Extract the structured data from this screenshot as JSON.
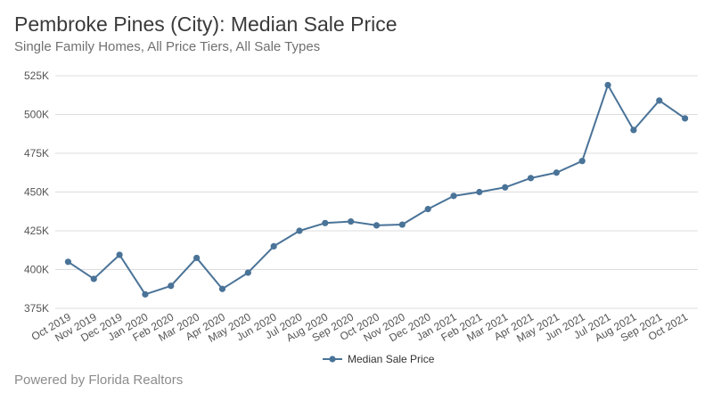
{
  "header": {
    "title": "Pembroke Pines (City): Median Sale Price",
    "subtitle": "Single Family Homes, All Price Tiers, All Sale Types"
  },
  "footer": {
    "text": "Powered by Florida Realtors"
  },
  "colors": {
    "series": "#4a7398",
    "grid": "#dddddd",
    "axis_text": "#555555",
    "title": "#3a3a3a",
    "subtitle": "#707070",
    "footer": "#8c8c8c"
  },
  "chart_data": {
    "type": "line",
    "title": "Pembroke Pines (City): Median Sale Price",
    "subtitle": "Single Family Homes, All Price Tiers, All Sale Types",
    "xlabel": "",
    "ylabel": "",
    "categories": [
      "Oct 2019",
      "Nov 2019",
      "Dec 2019",
      "Jan 2020",
      "Feb 2020",
      "Mar 2020",
      "Apr 2020",
      "May 2020",
      "Jun 2020",
      "Jul 2020",
      "Aug 2020",
      "Sep 2020",
      "Oct 2020",
      "Nov 2020",
      "Dec 2020",
      "Jan 2021",
      "Feb 2021",
      "Mar 2021",
      "Apr 2021",
      "May 2021",
      "Jun 2021",
      "Jul 2021",
      "Aug 2021",
      "Sep 2021",
      "Oct 2021"
    ],
    "series": [
      {
        "name": "Median Sale Price",
        "values": [
          405000,
          394000,
          409500,
          384000,
          389500,
          407500,
          387500,
          398000,
          415000,
          425000,
          430000,
          431000,
          428500,
          429000,
          439000,
          447500,
          450000,
          453000,
          459000,
          462500,
          470000,
          519000,
          490000,
          509000,
          497500
        ]
      }
    ],
    "yticks": [
      375000,
      400000,
      425000,
      450000,
      475000,
      500000,
      525000
    ],
    "ytick_labels": [
      "375K",
      "400K",
      "425K",
      "450K",
      "475K",
      "500K",
      "525K"
    ],
    "ylim": [
      375000,
      525000
    ],
    "grid": true,
    "legend": "bottom-center"
  }
}
